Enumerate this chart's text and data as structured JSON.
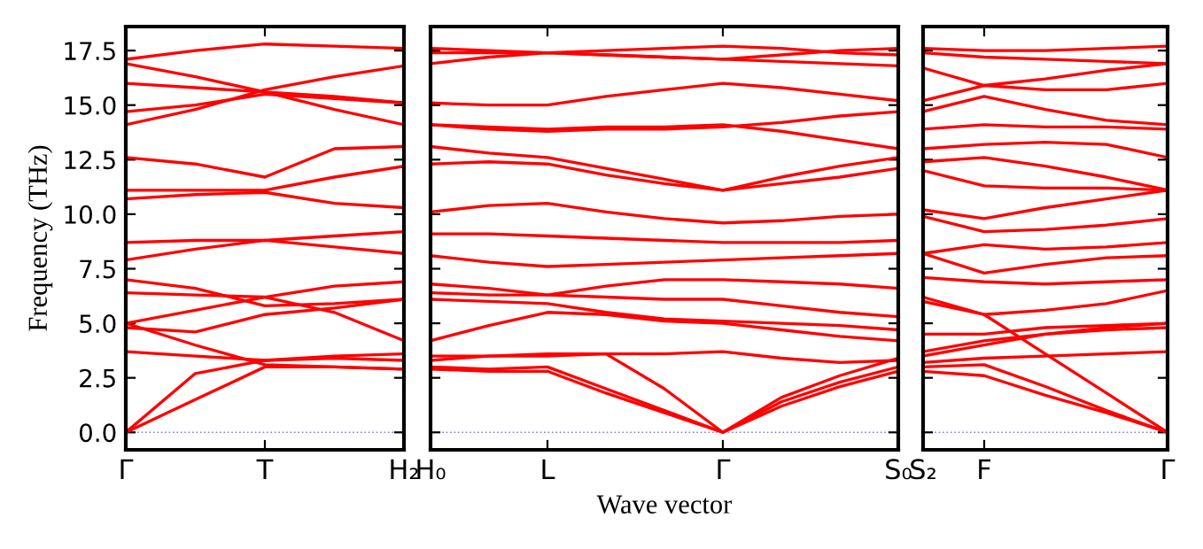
{
  "chart_data": [
    {
      "type": "line",
      "ylabel": "Frequency (THz)",
      "color": "#ff0000",
      "line_style": "solid",
      "marker": "none",
      "grid": false,
      "categories": [
        "Γ",
        null,
        "T",
        null,
        "H₂"
      ],
      "ylim": [
        -0.8,
        18.6
      ],
      "yticks": [
        {
          "value": 0,
          "label": "0.0"
        },
        {
          "value": 2.5,
          "label": "2.5"
        },
        {
          "value": 5,
          "label": "5.0"
        },
        {
          "value": 7.5,
          "label": "7.5"
        },
        {
          "value": 10,
          "label": "10.0"
        },
        {
          "value": 12.5,
          "label": "12.5"
        },
        {
          "value": 15,
          "label": "15.0"
        },
        {
          "value": 17.5,
          "label": "17.5"
        }
      ],
      "ref_lines": [
        {
          "axis": "y",
          "value": 0,
          "color": "#8080e0",
          "line_style": "dotted"
        }
      ],
      "series": [
        {
          "values": [
            0,
            1.5,
            3.0,
            3.0,
            2.9
          ]
        },
        {
          "values": [
            0,
            2.7,
            3.3,
            3.4,
            3.3
          ]
        },
        {
          "values": [
            3.7,
            3.5,
            3.3,
            3.5,
            3.6
          ]
        },
        {
          "values": [
            5.0,
            4.0,
            3.1,
            3.0,
            2.9
          ]
        },
        {
          "values": [
            4.8,
            4.6,
            5.4,
            5.7,
            6.1
          ]
        },
        {
          "values": [
            5.0,
            5.6,
            6.2,
            6.7,
            6.9
          ]
        },
        {
          "values": [
            6.4,
            6.3,
            6.2,
            5.5,
            4.2
          ]
        },
        {
          "values": [
            7.0,
            6.6,
            5.8,
            5.9,
            6.1
          ]
        },
        {
          "values": [
            7.9,
            8.4,
            8.8,
            9.0,
            9.2
          ]
        },
        {
          "values": [
            8.7,
            8.8,
            8.8,
            8.5,
            8.2
          ]
        },
        {
          "values": [
            10.7,
            10.9,
            11.0,
            10.5,
            10.3
          ]
        },
        {
          "values": [
            11.1,
            11.1,
            11.1,
            11.7,
            12.2
          ]
        },
        {
          "values": [
            12.6,
            12.3,
            11.7,
            13.0,
            13.1
          ]
        },
        {
          "values": [
            14.1,
            14.8,
            15.7,
            16.3,
            16.8
          ]
        },
        {
          "values": [
            14.7,
            15.0,
            15.5,
            15.3,
            15.1
          ]
        },
        {
          "values": [
            16.0,
            15.8,
            15.6,
            15.4,
            15.1
          ]
        },
        {
          "values": [
            16.9,
            16.3,
            15.6,
            14.8,
            14.1
          ]
        },
        {
          "values": [
            17.1,
            17.5,
            17.8,
            17.7,
            17.6
          ]
        }
      ]
    },
    {
      "type": "line",
      "xlabel": "Wave vector",
      "color": "#ff0000",
      "line_style": "solid",
      "marker": "none",
      "grid": false,
      "tick_labels": "x",
      "categories": [
        "H₀",
        null,
        "L",
        null,
        null,
        "Γ",
        null,
        null,
        "S₀"
      ],
      "ylim": [
        -0.8,
        18.6
      ],
      "yticks": [
        0,
        2.5,
        5,
        7.5,
        10,
        12.5,
        15,
        17.5
      ],
      "ref_lines": [
        {
          "axis": "y",
          "value": 0,
          "color": "#8080e0",
          "line_style": "dotted"
        }
      ],
      "series": [
        {
          "values": [
            2.9,
            2.8,
            2.8,
            1.8,
            0.9,
            0,
            1.2,
            2.1,
            2.8
          ]
        },
        {
          "values": [
            3.0,
            2.9,
            3.0,
            2.0,
            1.0,
            0,
            1.4,
            2.3,
            3.0
          ]
        },
        {
          "values": [
            3.3,
            3.5,
            3.6,
            3.6,
            2.0,
            0,
            1.6,
            2.6,
            3.4
          ]
        },
        {
          "values": [
            4.2,
            4.9,
            5.5,
            5.4,
            5.1,
            5.0,
            4.7,
            4.4,
            4.2
          ]
        },
        {
          "values": [
            3.5,
            3.5,
            3.5,
            3.6,
            3.6,
            3.7,
            3.4,
            3.2,
            3.3
          ]
        },
        {
          "values": [
            6.1,
            6.0,
            5.9,
            5.5,
            5.2,
            5.1,
            5.0,
            4.9,
            4.7
          ]
        },
        {
          "values": [
            6.4,
            6.3,
            6.3,
            6.2,
            6.1,
            6.1,
            5.8,
            5.5,
            5.3
          ]
        },
        {
          "values": [
            6.8,
            6.6,
            6.3,
            6.7,
            7.0,
            7.0,
            6.9,
            6.8,
            6.6
          ]
        },
        {
          "values": [
            8.1,
            7.8,
            7.6,
            7.7,
            7.8,
            7.9,
            8.0,
            8.1,
            8.2
          ]
        },
        {
          "values": [
            9.1,
            9.1,
            9.0,
            8.9,
            8.8,
            8.7,
            8.7,
            8.7,
            8.8
          ]
        },
        {
          "values": [
            10.1,
            10.4,
            10.5,
            10.1,
            9.8,
            9.6,
            9.7,
            9.9,
            10.0
          ]
        },
        {
          "values": [
            12.3,
            12.4,
            12.3,
            11.8,
            11.4,
            11.1,
            11.4,
            11.7,
            12.1
          ]
        },
        {
          "values": [
            13.1,
            12.8,
            12.6,
            12.1,
            11.6,
            11.1,
            11.7,
            12.2,
            12.6
          ]
        },
        {
          "values": [
            14.1,
            14.0,
            13.9,
            14.0,
            14.0,
            14.1,
            13.8,
            13.4,
            13.0
          ]
        },
        {
          "values": [
            14.1,
            13.9,
            13.8,
            13.9,
            13.9,
            14.0,
            14.2,
            14.5,
            14.7
          ]
        },
        {
          "values": [
            15.1,
            15.0,
            15.0,
            15.4,
            15.7,
            16.0,
            15.8,
            15.5,
            15.2
          ]
        },
        {
          "values": [
            16.9,
            17.2,
            17.4,
            17.3,
            17.2,
            17.1,
            17.0,
            16.9,
            16.8
          ]
        },
        {
          "values": [
            17.4,
            17.4,
            17.4,
            17.5,
            17.6,
            17.7,
            17.6,
            17.4,
            17.3
          ]
        },
        {
          "values": [
            17.6,
            17.5,
            17.4,
            17.3,
            17.2,
            17.1,
            17.3,
            17.5,
            17.6
          ]
        }
      ]
    },
    {
      "type": "line",
      "color": "#ff0000",
      "line_style": "solid",
      "marker": "none",
      "grid": false,
      "tick_labels": "x",
      "categories": [
        "S₂",
        "F",
        null,
        null,
        "Γ"
      ],
      "ylim": [
        -0.8,
        18.6
      ],
      "yticks": [
        0,
        2.5,
        5,
        7.5,
        10,
        12.5,
        15,
        17.5
      ],
      "ref_lines": [
        {
          "axis": "y",
          "value": 0,
          "color": "#8080e0",
          "line_style": "dotted"
        }
      ],
      "series": [
        {
          "values": [
            2.8,
            2.6,
            1.7,
            0.9,
            0
          ]
        },
        {
          "values": [
            3.0,
            3.1,
            2.1,
            1.0,
            0
          ]
        },
        {
          "values": [
            6.2,
            5.4,
            3.6,
            1.8,
            0
          ]
        },
        {
          "values": [
            3.2,
            3.4,
            3.5,
            3.6,
            3.7
          ]
        },
        {
          "values": [
            3.7,
            4.2,
            4.5,
            4.7,
            4.8
          ]
        },
        {
          "values": [
            4.5,
            4.5,
            4.8,
            4.9,
            5.0
          ]
        },
        {
          "values": [
            3.5,
            4.0,
            4.5,
            4.8,
            5.0
          ]
        },
        {
          "values": [
            6.0,
            5.4,
            5.6,
            5.9,
            6.5
          ]
        },
        {
          "values": [
            7.1,
            6.9,
            6.8,
            6.9,
            7.0
          ]
        },
        {
          "values": [
            8.2,
            7.3,
            7.7,
            8.0,
            8.1
          ]
        },
        {
          "values": [
            8.2,
            8.6,
            8.4,
            8.5,
            8.7
          ]
        },
        {
          "values": [
            9.9,
            9.2,
            9.3,
            9.5,
            9.8
          ]
        },
        {
          "values": [
            10.2,
            9.8,
            10.3,
            10.7,
            11.1
          ]
        },
        {
          "values": [
            12.0,
            11.3,
            11.2,
            11.2,
            11.1
          ]
        },
        {
          "values": [
            12.4,
            12.6,
            12.2,
            11.7,
            11.1
          ]
        },
        {
          "values": [
            13.0,
            13.2,
            13.3,
            13.2,
            12.6
          ]
        },
        {
          "values": [
            13.9,
            14.1,
            14.0,
            14.0,
            13.9
          ]
        },
        {
          "values": [
            14.7,
            15.4,
            14.8,
            14.3,
            14.1
          ]
        },
        {
          "values": [
            15.2,
            15.9,
            15.7,
            15.7,
            16.0
          ]
        },
        {
          "values": [
            16.7,
            15.9,
            16.2,
            16.6,
            16.9
          ]
        },
        {
          "values": [
            17.4,
            17.2,
            17.1,
            17.0,
            16.9
          ]
        },
        {
          "values": [
            17.6,
            17.5,
            17.5,
            17.6,
            17.7
          ]
        }
      ]
    }
  ]
}
